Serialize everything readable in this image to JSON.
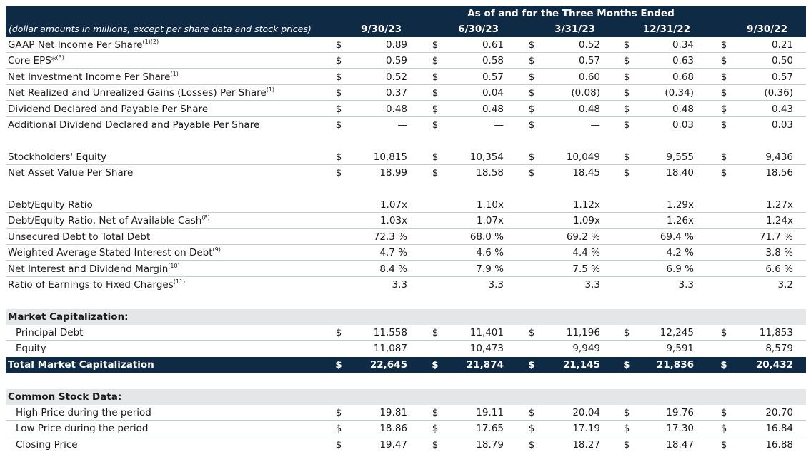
{
  "header": {
    "span_title": "As of and for the Three Months Ended",
    "note": "(dollar amounts in millions, except per share data and stock prices)",
    "periods": [
      "9/30/23",
      "6/30/23",
      "3/31/23",
      "12/31/22",
      "9/30/22"
    ]
  },
  "per_share": [
    {
      "label": "GAAP Net Income Per Share",
      "footnote": "(1)(2)",
      "cur": "$",
      "values": [
        "0.89",
        "0.61",
        "0.52",
        "0.34",
        "0.21"
      ]
    },
    {
      "label": "Core EPS*",
      "footnote": "(3)",
      "cur": "$",
      "values": [
        "0.59",
        "0.58",
        "0.57",
        "0.63",
        "0.50"
      ]
    },
    {
      "label": "Net Investment Income Per Share",
      "footnote": "(1)",
      "cur": "$",
      "values": [
        "0.52",
        "0.57",
        "0.60",
        "0.68",
        "0.57"
      ]
    },
    {
      "label": "Net Realized and Unrealized Gains (Losses) Per Share",
      "footnote": "(1)",
      "cur": "$",
      "values": [
        "0.37",
        "0.04",
        "(0.08)",
        "(0.34)",
        "(0.36)"
      ]
    },
    {
      "label": "Dividend Declared and Payable Per Share",
      "footnote": "",
      "cur": "$",
      "values": [
        "0.48",
        "0.48",
        "0.48",
        "0.48",
        "0.43"
      ]
    },
    {
      "label": "Additional Dividend Declared and Payable Per Share",
      "footnote": "",
      "cur": "$",
      "values": [
        "—",
        "—",
        "—",
        "0.03",
        "0.03"
      ]
    }
  ],
  "equity": [
    {
      "label": "Stockholders' Equity",
      "footnote": "",
      "cur": "$",
      "values": [
        "10,815",
        "10,354",
        "10,049",
        "9,555",
        "9,436"
      ]
    },
    {
      "label": "Net Asset Value Per Share",
      "footnote": "",
      "cur": "$",
      "values": [
        "18.99",
        "18.58",
        "18.45",
        "18.40",
        "18.56"
      ]
    }
  ],
  "ratios": [
    {
      "label": "Debt/Equity Ratio",
      "footnote": "",
      "cur": "",
      "values": [
        "1.07x",
        "1.10x",
        "1.12x",
        "1.29x",
        "1.27x"
      ]
    },
    {
      "label": "Debt/Equity Ratio, Net of Available Cash",
      "footnote": "(8)",
      "cur": "",
      "values": [
        "1.03x",
        "1.07x",
        "1.09x",
        "1.26x",
        "1.24x"
      ]
    },
    {
      "label": "Unsecured Debt to Total Debt",
      "footnote": "",
      "cur": "",
      "values": [
        "72.3 %",
        "68.0 %",
        "69.2 %",
        "69.4 %",
        "71.7 %"
      ]
    },
    {
      "label": "Weighted Average Stated Interest on Debt",
      "footnote": "(9)",
      "cur": "",
      "values": [
        "4.7 %",
        "4.6 %",
        "4.4 %",
        "4.2 %",
        "3.8 %"
      ]
    },
    {
      "label": "Net Interest and Dividend Margin",
      "footnote": "(10)",
      "cur": "",
      "values": [
        "8.4 %",
        "7.9 %",
        "7.5 %",
        "6.9 %",
        "6.6 %"
      ]
    },
    {
      "label": "Ratio of Earnings to Fixed Charges",
      "footnote": "(11)",
      "cur": "",
      "values": [
        "3.3",
        "3.3",
        "3.3",
        "3.3",
        "3.2"
      ]
    }
  ],
  "market_cap": {
    "title": "Market Capitalization:",
    "rows": [
      {
        "label": "Principal Debt",
        "cur": "$",
        "values": [
          "11,558",
          "11,401",
          "11,196",
          "12,245",
          "11,853"
        ]
      },
      {
        "label": "Equity",
        "cur": "",
        "values": [
          "11,087",
          "10,473",
          "9,949",
          "9,591",
          "8,579"
        ]
      }
    ],
    "total": {
      "label": "Total Market Capitalization",
      "cur": "$",
      "values": [
        "22,645",
        "21,874",
        "21,145",
        "21,836",
        "20,432"
      ]
    }
  },
  "stock": {
    "title": "Common Stock Data:",
    "rows": [
      {
        "label": "High Price during the period",
        "cur": "$",
        "values": [
          "19.81",
          "19.11",
          "20.04",
          "19.76",
          "20.70"
        ]
      },
      {
        "label": "Low Price during the period",
        "cur": "$",
        "values": [
          "18.86",
          "17.65",
          "17.19",
          "17.30",
          "16.84"
        ]
      },
      {
        "label": "Closing Price",
        "cur": "$",
        "values": [
          "19.47",
          "18.79",
          "18.27",
          "18.47",
          "16.88"
        ]
      }
    ]
  },
  "colors": {
    "header_bg": "#0f2a44",
    "section_bg": "#e4e6e8",
    "rule": "#c8cdd2"
  }
}
